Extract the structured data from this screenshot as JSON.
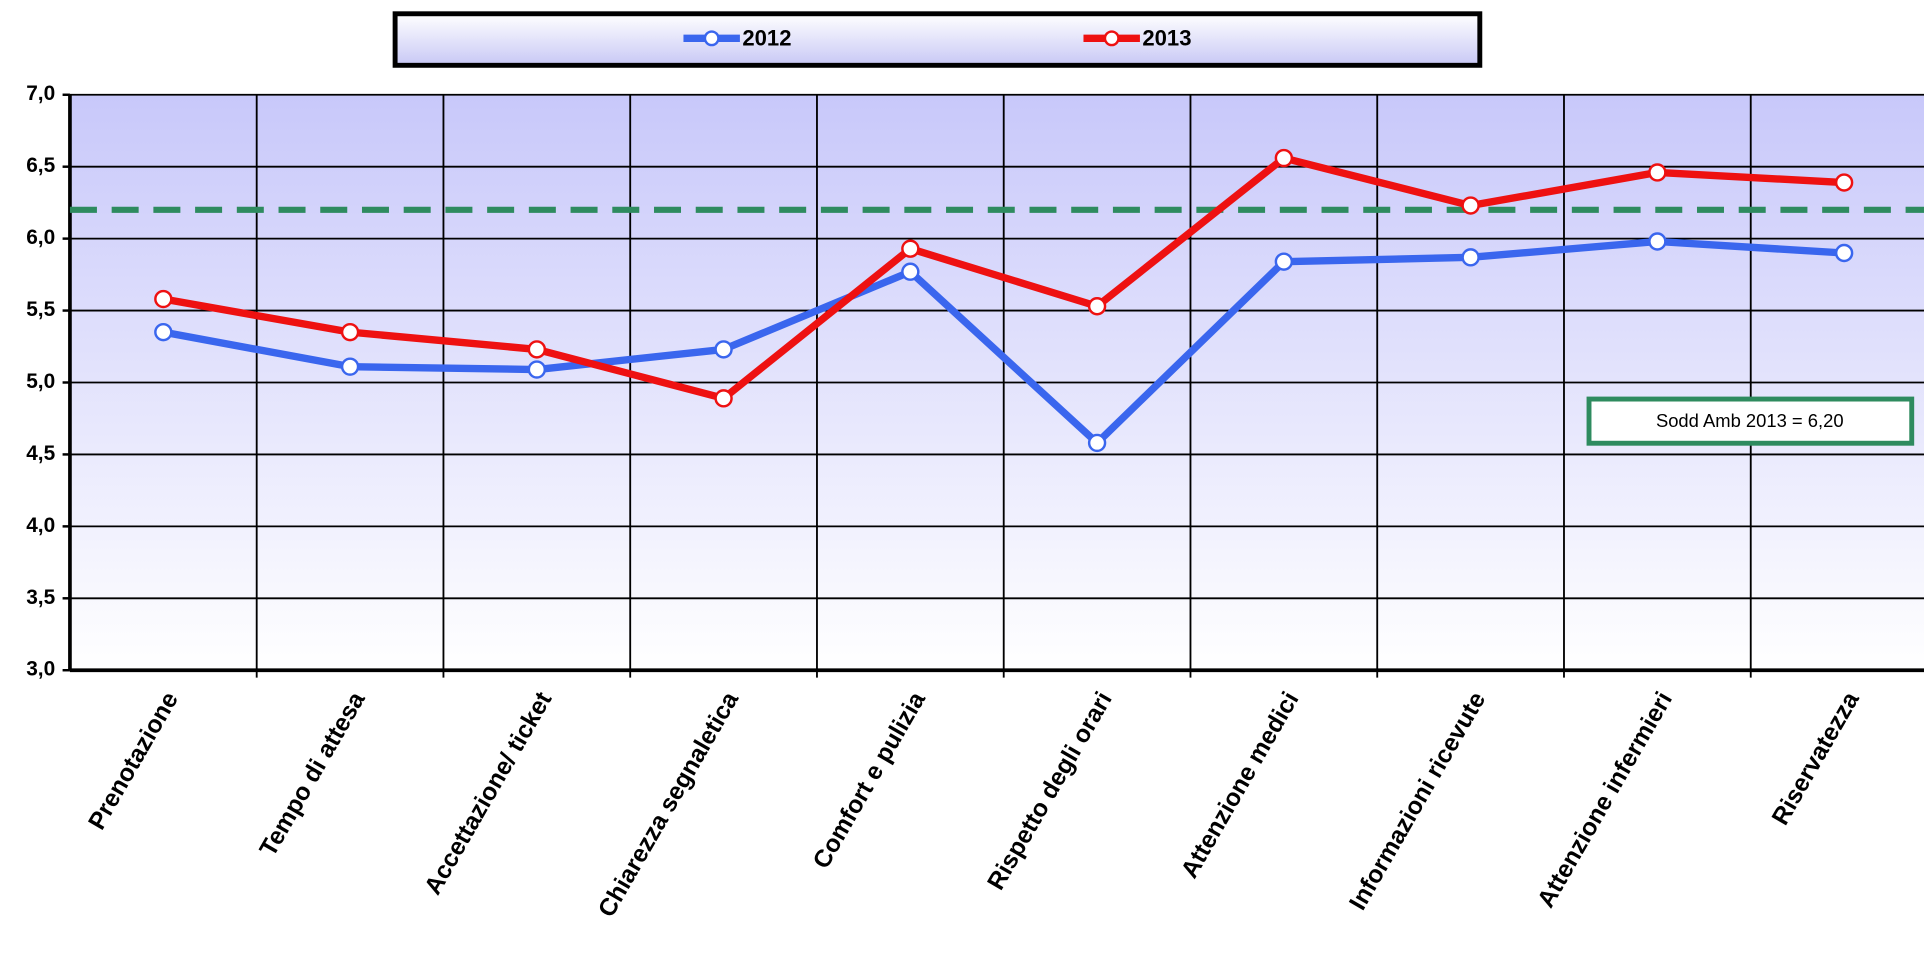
{
  "chart_data": {
    "type": "line",
    "categories": [
      "Prenotazione",
      "Tempo di attesa",
      "Accettazione/ ticket",
      "Chiarezza segnaletica",
      "Comfort e pulizia",
      "Rispetto degli orari",
      "Attenzione medici",
      "Informazioni ricevute",
      "Attenzione infermieri",
      "Riservatezza"
    ],
    "series": [
      {
        "name": "2012",
        "color": "#3a66ee",
        "values": [
          5.35,
          5.11,
          5.09,
          5.23,
          5.77,
          4.58,
          5.84,
          5.87,
          5.98,
          5.9
        ]
      },
      {
        "name": "2013",
        "color": "#ee1111",
        "values": [
          5.58,
          5.35,
          5.23,
          4.89,
          5.93,
          5.53,
          6.56,
          6.23,
          6.46,
          6.39
        ]
      }
    ],
    "ylim": [
      3.0,
      7.0
    ],
    "yticks": [
      {
        "value": 3.0,
        "label": "3,0"
      },
      {
        "value": 3.5,
        "label": "3,5"
      },
      {
        "value": 4.0,
        "label": "4,0"
      },
      {
        "value": 4.5,
        "label": "4,5"
      },
      {
        "value": 5.0,
        "label": "5,0"
      },
      {
        "value": 5.5,
        "label": "5,5"
      },
      {
        "value": 6.0,
        "label": "6,0"
      },
      {
        "value": 6.5,
        "label": "6,5"
      },
      {
        "value": 7.0,
        "label": "7,0"
      }
    ],
    "grid": true,
    "legend": "top",
    "reference_line": {
      "value": 6.2,
      "color": "#2e8b5f"
    },
    "annotation": "Sodd Amb 2013 = 6,20"
  }
}
